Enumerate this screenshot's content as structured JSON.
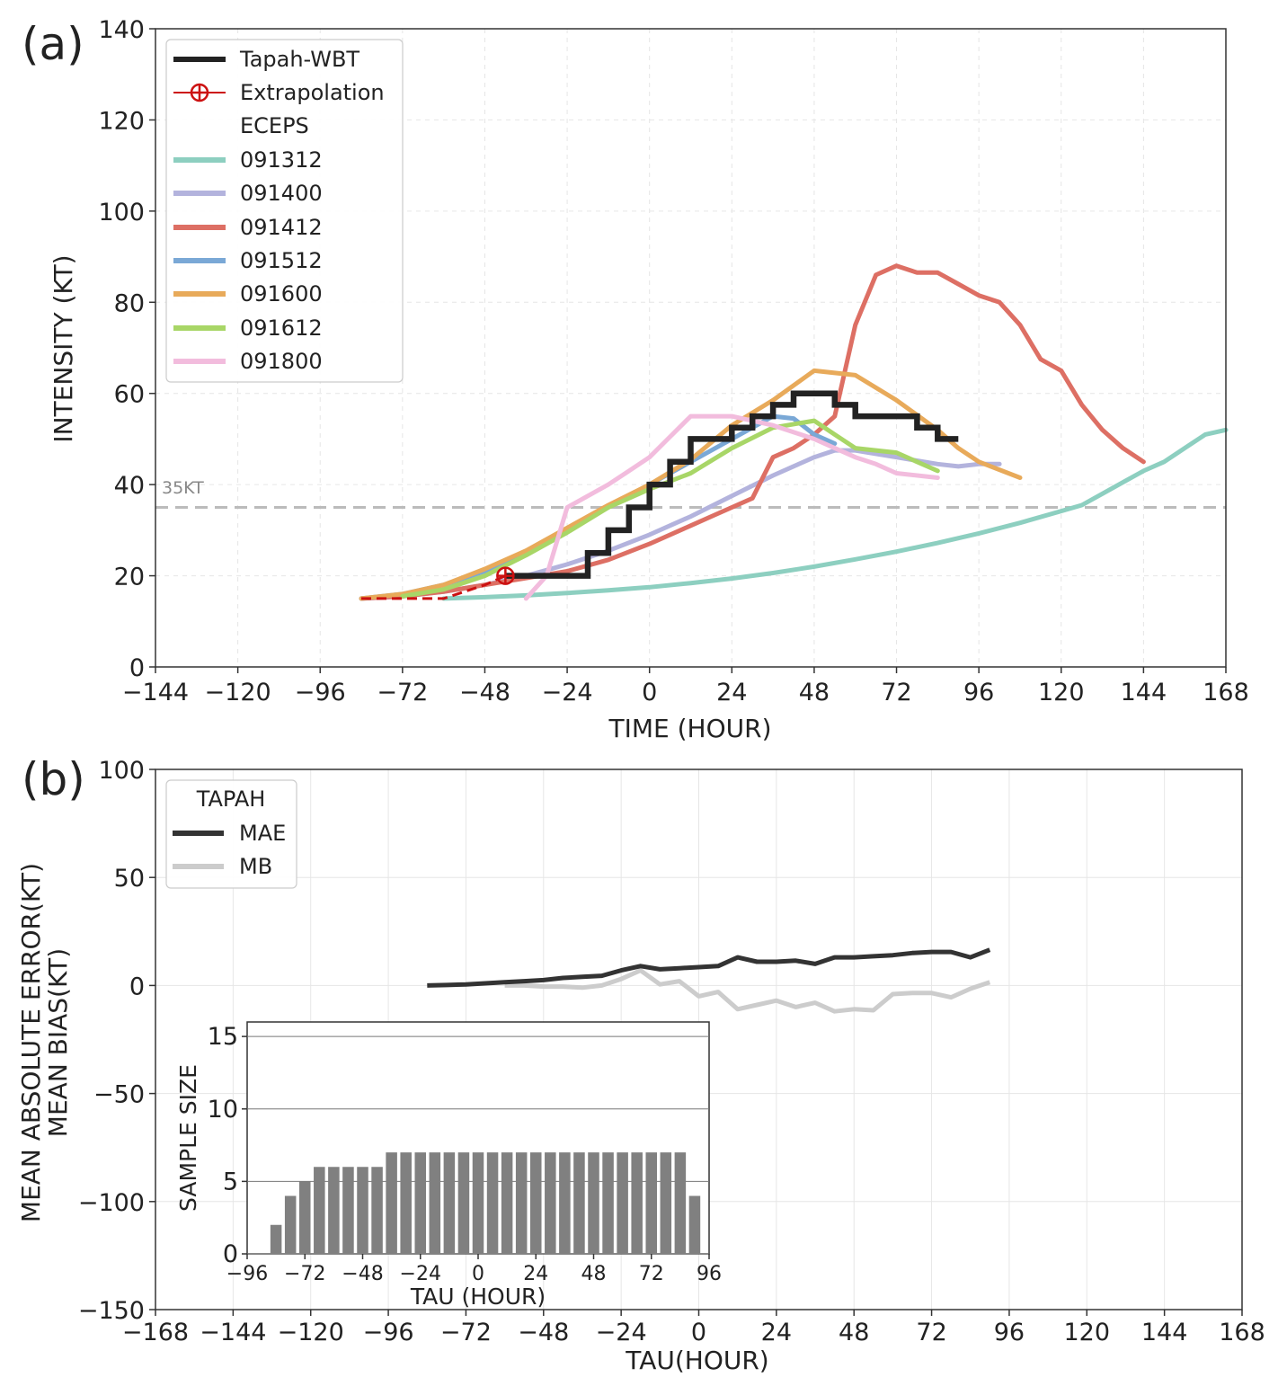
{
  "chart_data": [
    {
      "panel": "(a)",
      "type": "line",
      "xlabel": "TIME (HOUR)",
      "ylabel": "INTENSITY (KT)",
      "xlim": [
        -144,
        168
      ],
      "ylim": [
        0,
        140
      ],
      "xticks": [
        -144,
        -120,
        -96,
        -72,
        -48,
        -24,
        0,
        24,
        48,
        72,
        96,
        120,
        144,
        168
      ],
      "yticks": [
        0,
        20,
        40,
        60,
        80,
        100,
        120,
        140
      ],
      "grid": "dashed",
      "legend": "top-left",
      "legend_header": "ECEPS",
      "threshold": {
        "value": 35,
        "label": "35KT",
        "color": "#bbbbbb"
      },
      "extrapolation": {
        "name": "Extrapolation",
        "color": "#cc1111",
        "x": [
          -84,
          -78,
          -72,
          -66,
          -60,
          -54,
          -48,
          -42
        ],
        "y": [
          15,
          15,
          15,
          15,
          15,
          16.5,
          18,
          20
        ],
        "marker": {
          "x": -42,
          "y": 20
        }
      },
      "observed": {
        "name": "Tapah-WBT",
        "color": "#222222",
        "x": [
          -42,
          -18,
          -18,
          -12,
          -12,
          -6,
          -6,
          0,
          0,
          6,
          6,
          12,
          12,
          24,
          24,
          30,
          30,
          36,
          36,
          42,
          42,
          54,
          54,
          60,
          60,
          78,
          78,
          84,
          84,
          90
        ],
        "y": [
          20,
          20,
          25,
          25,
          30,
          30,
          35,
          35,
          40,
          40,
          45,
          45,
          50,
          50,
          52.5,
          52.5,
          55,
          55,
          57.5,
          57.5,
          60,
          60,
          57.5,
          57.5,
          55,
          55,
          52.5,
          52.5,
          50,
          50
        ]
      },
      "series": [
        {
          "name": "091312",
          "color": "#8dcfc0",
          "x": [
            -60,
            -48,
            -36,
            -24,
            -12,
            0,
            12,
            24,
            36,
            48,
            60,
            72,
            84,
            96,
            108,
            120,
            126,
            132,
            138,
            144,
            150,
            156,
            162,
            168
          ],
          "y": [
            15,
            15.3,
            15.7,
            16.2,
            16.8,
            17.5,
            18.4,
            19.4,
            20.6,
            22,
            23.6,
            25.3,
            27.2,
            29.3,
            31.6,
            34.2,
            35.5,
            38,
            40.5,
            43,
            45,
            48,
            51,
            52
          ]
        },
        {
          "name": "091400",
          "color": "#b3b3dd",
          "x": [
            -84,
            -72,
            -60,
            -48,
            -36,
            -24,
            -12,
            0,
            12,
            24,
            36,
            48,
            54,
            60,
            72,
            84,
            90,
            96,
            102
          ],
          "y": [
            15,
            15.5,
            16.5,
            18,
            20,
            22.5,
            25.5,
            29,
            33,
            37.5,
            42,
            46,
            47.5,
            47.5,
            46,
            44.5,
            44,
            44.5,
            44.5
          ]
        },
        {
          "name": "091412",
          "color": "#dd6f64",
          "x": [
            -84,
            -72,
            -60,
            -48,
            -36,
            -24,
            -12,
            0,
            12,
            18,
            24,
            30,
            36,
            42,
            48,
            54,
            60,
            66,
            72,
            78,
            84,
            90,
            96,
            102,
            108,
            114,
            120,
            126,
            132,
            138,
            144
          ],
          "y": [
            15,
            15.5,
            16.5,
            18,
            19.5,
            21,
            23.5,
            27,
            31,
            33,
            35,
            37,
            46,
            48,
            51,
            55,
            75,
            86,
            88,
            86.5,
            86.5,
            84,
            81.5,
            80,
            75,
            67.5,
            65,
            57.5,
            52,
            48,
            45
          ]
        },
        {
          "name": "091512",
          "color": "#7aa8d6",
          "x": [
            -84,
            -72,
            -60,
            -48,
            -36,
            -24,
            -12,
            0,
            12,
            24,
            36,
            42,
            48,
            54
          ],
          "y": [
            15,
            16,
            18,
            21,
            25,
            30,
            35,
            40,
            45,
            50,
            55,
            54.5,
            51,
            49
          ]
        },
        {
          "name": "091600",
          "color": "#e8aa5a",
          "x": [
            -84,
            -72,
            -60,
            -48,
            -36,
            -24,
            -12,
            0,
            12,
            24,
            36,
            48,
            54,
            60,
            72,
            84,
            90,
            96,
            108
          ],
          "y": [
            15,
            16,
            18,
            21.5,
            25.5,
            30.5,
            35.5,
            40,
            45.5,
            53,
            58.5,
            65,
            64.5,
            64,
            58.5,
            52,
            48,
            45,
            41.5
          ]
        },
        {
          "name": "091612",
          "color": "#a8d667",
          "x": [
            -72,
            -60,
            -48,
            -36,
            -24,
            -12,
            0,
            12,
            24,
            36,
            48,
            54,
            60,
            72,
            78,
            84
          ],
          "y": [
            15.5,
            17,
            20,
            24.5,
            29.5,
            35,
            39,
            42.5,
            48,
            52.5,
            54,
            51,
            48,
            47,
            45,
            43
          ]
        },
        {
          "name": "091800",
          "color": "#f2bcdd",
          "x": [
            -36,
            -30,
            -24,
            -18,
            -12,
            -6,
            0,
            6,
            12,
            24,
            36,
            48,
            60,
            66,
            72,
            84
          ],
          "y": [
            15,
            20,
            35,
            37.5,
            40,
            43,
            46,
            50.5,
            55,
            55,
            53,
            50,
            46,
            44.5,
            42.5,
            41.5
          ]
        }
      ]
    },
    {
      "panel": "(b)",
      "type": "line",
      "xlabel": "TAU(HOUR)",
      "ylabel": [
        "MEAN ABSOLUTE ERROR(KT)",
        "MEAN BIAS(KT)"
      ],
      "xlim": [
        -168,
        168
      ],
      "ylim": [
        -150,
        100
      ],
      "xticks": [
        -168,
        -144,
        -120,
        -96,
        -72,
        -48,
        -24,
        0,
        24,
        48,
        72,
        96,
        120,
        144,
        168
      ],
      "yticks": [
        -150,
        -100,
        -50,
        0,
        50,
        100
      ],
      "grid": "solid",
      "legend": "top-left",
      "legend_title": "TAPAH",
      "series": [
        {
          "name": "MAE",
          "color": "#333333",
          "x": [
            -84,
            -78,
            -72,
            -66,
            -60,
            -54,
            -48,
            -42,
            -36,
            -30,
            -24,
            -18,
            -12,
            -6,
            0,
            6,
            12,
            18,
            24,
            30,
            36,
            42,
            48,
            54,
            60,
            66,
            72,
            78,
            84,
            90
          ],
          "y": [
            0,
            0.2,
            0.5,
            1,
            1.5,
            2,
            2.5,
            3.5,
            4,
            4.5,
            7,
            9,
            7.5,
            8,
            8.5,
            9,
            13,
            11,
            11,
            11.5,
            10,
            13,
            13,
            13.5,
            14,
            15,
            15.5,
            15.5,
            13,
            16.5
          ]
        },
        {
          "name": "MB",
          "color": "#cccccc",
          "x": [
            -60,
            -54,
            -48,
            -42,
            -36,
            -30,
            -24,
            -18,
            -12,
            -6,
            0,
            6,
            12,
            18,
            24,
            30,
            36,
            42,
            48,
            54,
            60,
            66,
            72,
            78,
            84,
            90
          ],
          "y": [
            0,
            0,
            -0.5,
            -0.5,
            -1,
            0,
            3,
            7,
            0.5,
            2,
            -5,
            -3,
            -11,
            -9,
            -7,
            -10,
            -8,
            -12,
            -11,
            -11.5,
            -4,
            -3.5,
            -3.5,
            -5.5,
            -1.5,
            1.5
          ]
        }
      ],
      "inset": {
        "type": "bar",
        "xlabel": "TAU (HOUR)",
        "ylabel": "SAMPLE SIZE",
        "xlim": [
          -96,
          96
        ],
        "ylim": [
          0,
          16
        ],
        "xticks": [
          -96,
          -72,
          -48,
          -24,
          0,
          24,
          48,
          72,
          96
        ],
        "yticks": [
          0,
          5,
          10,
          15
        ],
        "color": "#808080",
        "x": [
          -84,
          -78,
          -72,
          -66,
          -60,
          -54,
          -48,
          -42,
          -36,
          -30,
          -24,
          -18,
          -12,
          -6,
          0,
          6,
          12,
          18,
          24,
          30,
          36,
          42,
          48,
          54,
          60,
          66,
          72,
          78,
          84,
          90
        ],
        "values": [
          2,
          4,
          5,
          6,
          6,
          6,
          6,
          6,
          7,
          7,
          7,
          7,
          7,
          7,
          7,
          7,
          7,
          7,
          7,
          7,
          7,
          7,
          7,
          7,
          7,
          7,
          7,
          7,
          7,
          4
        ]
      }
    }
  ]
}
